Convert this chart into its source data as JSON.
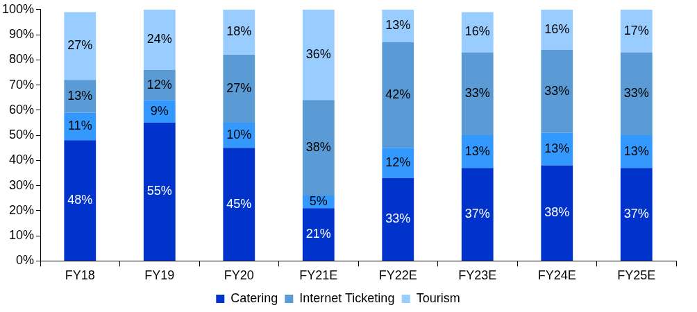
{
  "chart_data": {
    "type": "bar",
    "stacked": true,
    "categories": [
      "FY18",
      "FY19",
      "FY20",
      "FY21E",
      "FY22E",
      "FY23E",
      "FY24E",
      "FY25E"
    ],
    "series": [
      {
        "name": "Catering",
        "color": "#0033cc",
        "values": [
          48,
          55,
          45,
          21,
          33,
          37,
          38,
          37
        ],
        "value_labels": [
          "48%",
          "55%",
          "45%",
          "21%",
          "33%",
          "37%",
          "38%",
          "37%"
        ]
      },
      {
        "color": "#3399ff",
        "values": [
          11,
          9,
          10,
          5,
          12,
          13,
          13,
          13
        ],
        "value_labels": [
          "11%",
          "9%",
          "10%",
          "5%",
          "12%",
          "13%",
          "13%",
          "13%"
        ]
      },
      {
        "name": "Internet Ticketing",
        "color": "#5b9bd5",
        "values": [
          13,
          12,
          27,
          38,
          42,
          33,
          33,
          33
        ],
        "value_labels": [
          "13%",
          "12%",
          "27%",
          "38%",
          "42%",
          "33%",
          "33%",
          "33%"
        ]
      },
      {
        "name": "Tourism",
        "color": "#99ccff",
        "values": [
          27,
          24,
          18,
          36,
          13,
          16,
          16,
          17
        ],
        "value_labels": [
          "27%",
          "24%",
          "18%",
          "36%",
          "13%",
          "16%",
          "16%",
          "17%"
        ]
      }
    ],
    "ylim": [
      0,
      100
    ],
    "yticks": [
      {
        "value": 0,
        "label": "0%"
      },
      {
        "value": 10,
        "label": "10%"
      },
      {
        "value": 20,
        "label": "20%"
      },
      {
        "value": 30,
        "label": "30%"
      },
      {
        "value": 40,
        "label": "40%"
      },
      {
        "value": 50,
        "label": "50%"
      },
      {
        "value": 60,
        "label": "60%"
      },
      {
        "value": 70,
        "label": "70%"
      },
      {
        "value": 80,
        "label": "80%"
      },
      {
        "value": 90,
        "label": "90%"
      },
      {
        "value": 100,
        "label": "100%"
      }
    ],
    "grid": false,
    "legend": "bottom"
  }
}
